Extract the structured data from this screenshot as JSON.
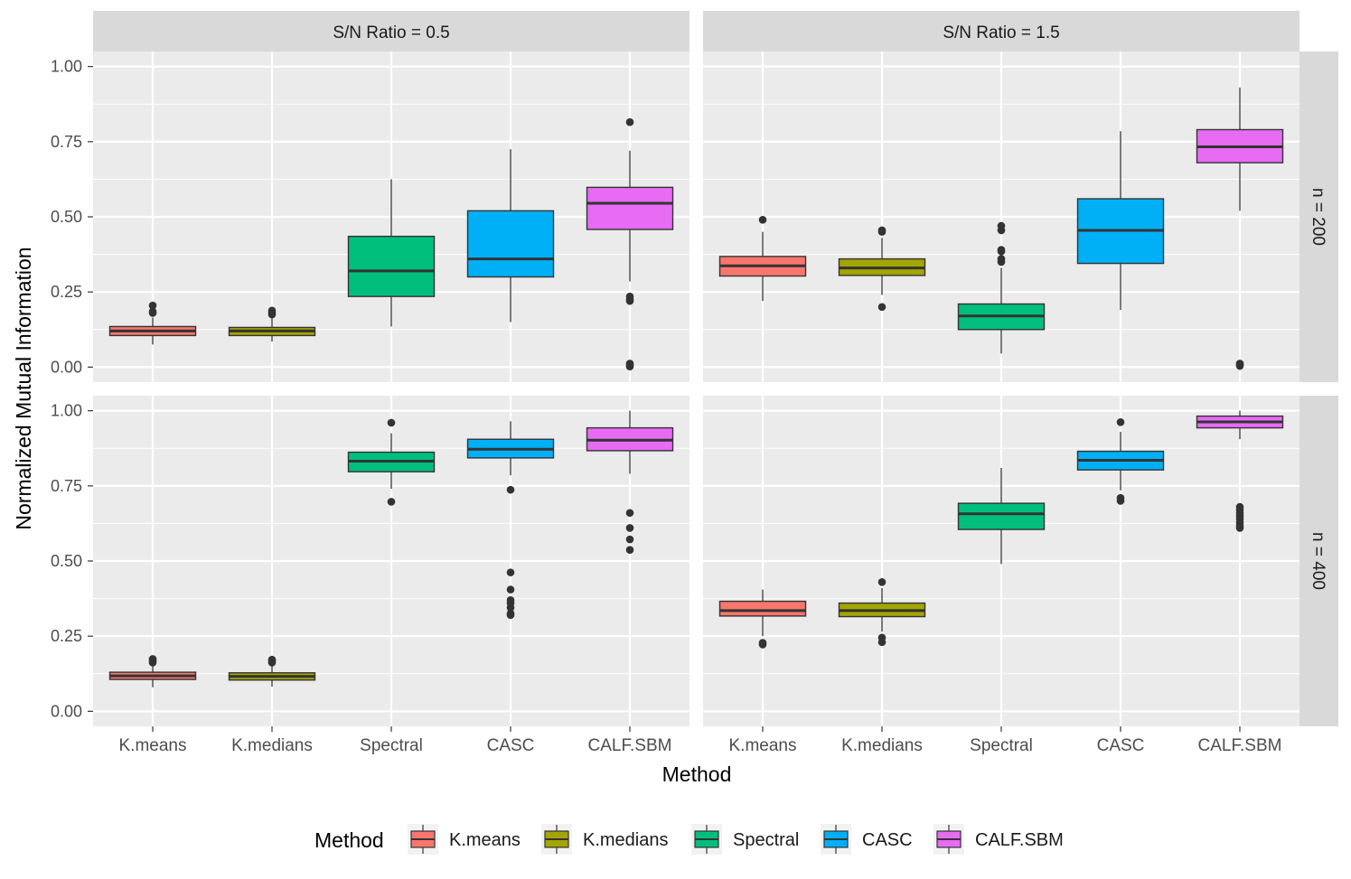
{
  "chart_data": {
    "type": "boxplot",
    "facet_columns": [
      "S/N Ratio = 0.5",
      "S/N Ratio = 1.5"
    ],
    "facet_rows": [
      "n = 200",
      "n = 400"
    ],
    "xlabel": "Method",
    "ylabel": "Normalized Mutual Information",
    "categories": [
      "K.means",
      "K.medians",
      "Spectral",
      "CASC",
      "CALF.SBM"
    ],
    "y_ticks": [
      "0.00",
      "0.25",
      "0.50",
      "0.75",
      "1.00"
    ],
    "ylim": [
      -0.05,
      1.05
    ],
    "legend": {
      "title": "Method",
      "position": "bottom",
      "entries": [
        "K.means",
        "K.medians",
        "Spectral",
        "CASC",
        "CALF.SBM"
      ]
    },
    "colors": {
      "K.means": "#F8766D",
      "K.medians": "#A3A500",
      "Spectral": "#00BF7D",
      "CASC": "#00B0F6",
      "CALF.SBM": "#E76BF3"
    },
    "panels": [
      {
        "col": 0,
        "row": 0,
        "boxes": [
          {
            "method": "K.means",
            "q1": 0.105,
            "median": 0.12,
            "q3": 0.135,
            "whisker_low": 0.075,
            "whisker_high": 0.165,
            "outliers": [
              0.18,
              0.185,
              0.205
            ]
          },
          {
            "method": "K.medians",
            "q1": 0.105,
            "median": 0.12,
            "q3": 0.132,
            "whisker_low": 0.085,
            "whisker_high": 0.165,
            "outliers": [
              0.175,
              0.18,
              0.188
            ]
          },
          {
            "method": "Spectral",
            "q1": 0.235,
            "median": 0.32,
            "q3": 0.435,
            "whisker_low": 0.135,
            "whisker_high": 0.625,
            "outliers": []
          },
          {
            "method": "CASC",
            "q1": 0.3,
            "median": 0.36,
            "q3": 0.52,
            "whisker_low": 0.15,
            "whisker_high": 0.725,
            "outliers": []
          },
          {
            "method": "CALF.SBM",
            "q1": 0.458,
            "median": 0.545,
            "q3": 0.598,
            "whisker_low": 0.285,
            "whisker_high": 0.72,
            "outliers": [
              0.815,
              0.235,
              0.225,
              0.22,
              0.012,
              0.006,
              0.002
            ]
          }
        ]
      },
      {
        "col": 1,
        "row": 0,
        "boxes": [
          {
            "method": "K.means",
            "q1": 0.303,
            "median": 0.337,
            "q3": 0.368,
            "whisker_low": 0.22,
            "whisker_high": 0.45,
            "outliers": [
              0.49
            ]
          },
          {
            "method": "K.medians",
            "q1": 0.305,
            "median": 0.33,
            "q3": 0.36,
            "whisker_low": 0.24,
            "whisker_high": 0.43,
            "outliers": [
              0.45,
              0.455,
              0.2
            ]
          },
          {
            "method": "Spectral",
            "q1": 0.125,
            "median": 0.17,
            "q3": 0.21,
            "whisker_low": 0.045,
            "whisker_high": 0.33,
            "outliers": [
              0.35,
              0.36,
              0.385,
              0.39,
              0.455,
              0.47
            ]
          },
          {
            "method": "CASC",
            "q1": 0.345,
            "median": 0.455,
            "q3": 0.56,
            "whisker_low": 0.19,
            "whisker_high": 0.785,
            "outliers": []
          },
          {
            "method": "CALF.SBM",
            "q1": 0.68,
            "median": 0.733,
            "q3": 0.79,
            "whisker_low": 0.52,
            "whisker_high": 0.93,
            "outliers": [
              0.012,
              0.008,
              0.004
            ]
          }
        ]
      },
      {
        "col": 0,
        "row": 1,
        "boxes": [
          {
            "method": "K.means",
            "q1": 0.106,
            "median": 0.118,
            "q3": 0.13,
            "whisker_low": 0.08,
            "whisker_high": 0.155,
            "outliers": [
              0.162,
              0.168,
              0.174
            ]
          },
          {
            "method": "K.medians",
            "q1": 0.104,
            "median": 0.116,
            "q3": 0.128,
            "whisker_low": 0.082,
            "whisker_high": 0.155,
            "outliers": [
              0.162,
              0.168,
              0.172
            ]
          },
          {
            "method": "Spectral",
            "q1": 0.797,
            "median": 0.832,
            "q3": 0.862,
            "whisker_low": 0.74,
            "whisker_high": 0.925,
            "outliers": [
              0.96,
              0.697
            ]
          },
          {
            "method": "CASC",
            "q1": 0.843,
            "median": 0.872,
            "q3": 0.905,
            "whisker_low": 0.785,
            "whisker_high": 0.965,
            "outliers": [
              0.737,
              0.462,
              0.405,
              0.37,
              0.36,
              0.345,
              0.325,
              0.32
            ]
          },
          {
            "method": "CALF.SBM",
            "q1": 0.867,
            "median": 0.902,
            "q3": 0.943,
            "whisker_low": 0.79,
            "whisker_high": 1.0,
            "outliers": [
              0.66,
              0.61,
              0.572,
              0.537
            ]
          }
        ]
      },
      {
        "col": 1,
        "row": 1,
        "boxes": [
          {
            "method": "K.means",
            "q1": 0.317,
            "median": 0.335,
            "q3": 0.366,
            "whisker_low": 0.25,
            "whisker_high": 0.405,
            "outliers": [
              0.228,
              0.222
            ]
          },
          {
            "method": "K.medians",
            "q1": 0.315,
            "median": 0.335,
            "q3": 0.36,
            "whisker_low": 0.265,
            "whisker_high": 0.41,
            "outliers": [
              0.43,
              0.245,
              0.23
            ]
          },
          {
            "method": "Spectral",
            "q1": 0.605,
            "median": 0.657,
            "q3": 0.692,
            "whisker_low": 0.49,
            "whisker_high": 0.81,
            "outliers": []
          },
          {
            "method": "CASC",
            "q1": 0.803,
            "median": 0.835,
            "q3": 0.865,
            "whisker_low": 0.735,
            "whisker_high": 0.93,
            "outliers": [
              0.962,
              0.71,
              0.7
            ]
          },
          {
            "method": "CALF.SBM",
            "q1": 0.943,
            "median": 0.963,
            "q3": 0.982,
            "whisker_low": 0.905,
            "whisker_high": 1.0,
            "outliers": [
              0.68,
              0.67,
              0.66,
              0.65,
              0.64,
              0.628,
              0.618,
              0.61
            ]
          }
        ]
      }
    ]
  }
}
